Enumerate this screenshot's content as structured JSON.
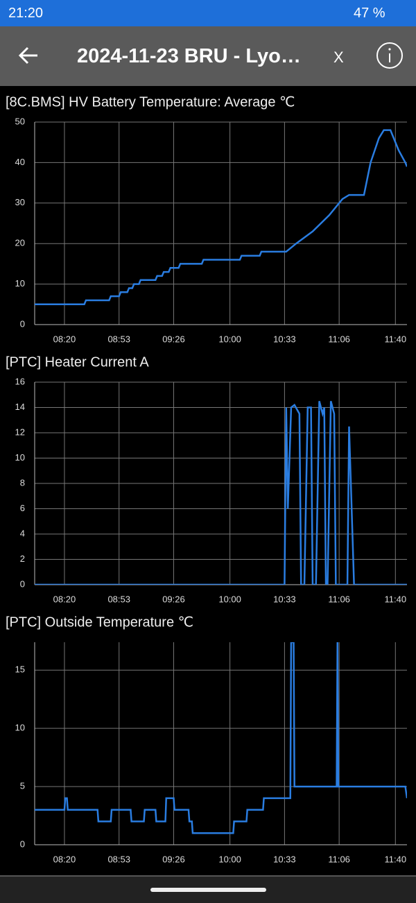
{
  "status_bar": {
    "time": "21:20",
    "battery": "47 %"
  },
  "header": {
    "title": "2024-11-23 BRU - Lyo…",
    "close": "X"
  },
  "chart_data": [
    {
      "type": "line",
      "title": "[8C.BMS] HV Battery Temperature: Average  ℃",
      "grid": true,
      "xlim": [
        482,
        707
      ],
      "xticks": [
        {
          "value": 500,
          "label": "08:20"
        },
        {
          "value": 533,
          "label": "08:53"
        },
        {
          "value": 566,
          "label": "09:26"
        },
        {
          "value": 600,
          "label": "10:00"
        },
        {
          "value": 633,
          "label": "10:33"
        },
        {
          "value": 666,
          "label": "11:06"
        },
        {
          "value": 700,
          "label": "11:40"
        }
      ],
      "ylim": [
        0,
        50
      ],
      "yticks": [
        0,
        10,
        20,
        30,
        40,
        50
      ],
      "series": [
        {
          "color": "#2a7de1",
          "x": [
            482,
            512,
            513,
            527,
            528,
            533,
            534,
            538,
            539,
            541,
            542,
            545,
            546,
            555,
            556,
            559,
            560,
            563,
            564,
            569,
            570,
            583,
            584,
            606,
            607,
            618,
            619,
            634,
            640,
            650,
            660,
            668,
            672,
            681,
            685,
            690,
            693,
            697,
            702,
            706,
            707
          ],
          "values": [
            5,
            5,
            6,
            6,
            7,
            7,
            8,
            8,
            9,
            9,
            10,
            10,
            11,
            11,
            12,
            12,
            13,
            13,
            14,
            14,
            15,
            15,
            16,
            16,
            17,
            17,
            18,
            18,
            20,
            23,
            27,
            31,
            32,
            32,
            40,
            46,
            48,
            48,
            43,
            40,
            39
          ]
        }
      ]
    },
    {
      "type": "line",
      "title": "[PTC] Heater Current  A",
      "grid": true,
      "xlim": [
        482,
        707
      ],
      "xticks": [
        {
          "value": 500,
          "label": "08:20"
        },
        {
          "value": 533,
          "label": "08:53"
        },
        {
          "value": 566,
          "label": "09:26"
        },
        {
          "value": 600,
          "label": "10:00"
        },
        {
          "value": 633,
          "label": "10:33"
        },
        {
          "value": 666,
          "label": "11:06"
        },
        {
          "value": 700,
          "label": "11:40"
        }
      ],
      "ylim": [
        0,
        16
      ],
      "yticks": [
        0,
        2,
        4,
        6,
        8,
        10,
        12,
        14,
        16
      ],
      "series": [
        {
          "color": "#2a7de1",
          "x": [
            482,
            633,
            634,
            635,
            637,
            639,
            642,
            643,
            645,
            647,
            649,
            650,
            652,
            654,
            656,
            657,
            658,
            659,
            661,
            663,
            664,
            671,
            672,
            675,
            707
          ],
          "values": [
            0,
            0,
            14,
            6,
            14,
            14.2,
            13.5,
            0,
            0,
            14,
            14,
            0,
            0,
            14.5,
            13.5,
            14,
            0,
            0,
            14.5,
            13.5,
            0,
            0,
            12.5,
            0,
            0
          ]
        }
      ]
    },
    {
      "type": "line",
      "title": "[PTC] Outside Temperature  ℃",
      "grid": true,
      "xlim": [
        482,
        707
      ],
      "xticks": [
        {
          "value": 500,
          "label": "08:20"
        },
        {
          "value": 533,
          "label": "08:53"
        },
        {
          "value": 566,
          "label": "09:26"
        },
        {
          "value": 600,
          "label": "10:00"
        },
        {
          "value": 633,
          "label": "10:33"
        },
        {
          "value": 666,
          "label": "11:06"
        },
        {
          "value": 700,
          "label": "11:40"
        }
      ],
      "ylim": [
        0,
        17.4
      ],
      "yticks": [
        0,
        5,
        10,
        15
      ],
      "series": [
        {
          "color": "#2a7de1",
          "x": [
            482,
            500,
            500.5,
            501.5,
            502,
            520,
            520.5,
            528,
            528.5,
            540,
            540.5,
            548,
            548.5,
            555,
            555.5,
            561,
            561.5,
            566,
            566.5,
            575,
            575.5,
            577,
            577.5,
            602,
            602.5,
            610,
            610.5,
            620,
            620.5,
            628,
            628.5,
            636.5,
            637,
            638.5,
            639,
            664.5,
            665,
            665.5,
            706,
            707
          ],
          "values": [
            3,
            3,
            4,
            4,
            3,
            3,
            2,
            2,
            3,
            3,
            2,
            2,
            3,
            3,
            2,
            2,
            4,
            4,
            3,
            3,
            2,
            2,
            1,
            1,
            2,
            2,
            3,
            3,
            4,
            4,
            4,
            4,
            17.4,
            17.4,
            5,
            5,
            17.4,
            5,
            5,
            4
          ]
        }
      ]
    }
  ]
}
